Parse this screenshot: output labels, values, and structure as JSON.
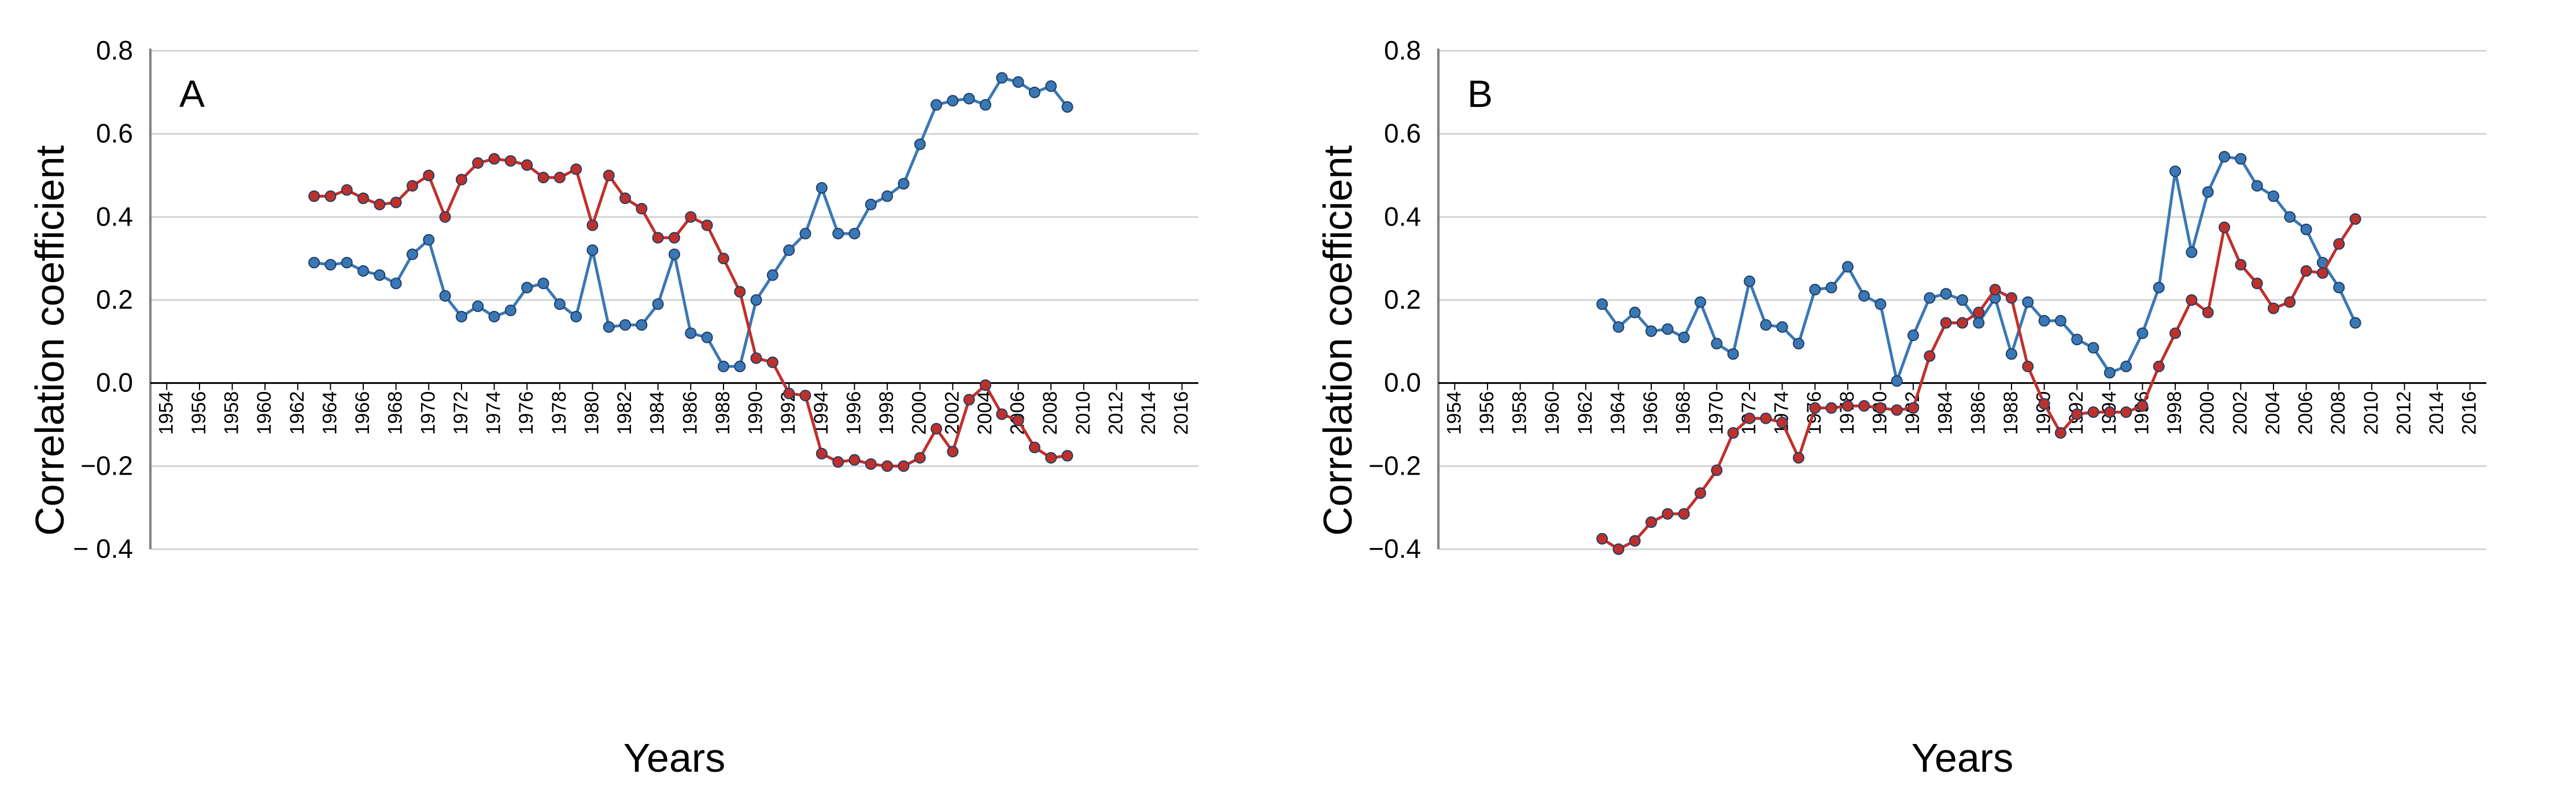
{
  "chart_data": [
    {
      "type": "line",
      "panel_label": "A",
      "xlabel": "Years",
      "ylabel": "Correlation coefficient",
      "ylim": [
        -0.4,
        0.8
      ],
      "xlim": [
        1953,
        2017
      ],
      "yticks": [
        -0.4,
        -0.2,
        0.0,
        0.2,
        0.4,
        0.6,
        0.8
      ],
      "ytick_labels": [
        "− 0.4",
        "−0.2",
        "0.0",
        "0.2",
        "0.4",
        "0.6",
        "0.8"
      ],
      "xticks": [
        "1954",
        "1956",
        "1958",
        "1960",
        "1962",
        "1964",
        "1966",
        "1968",
        "1970",
        "1972",
        "1974",
        "1976",
        "1978",
        "1980",
        "1982",
        "1984",
        "1986",
        "1988",
        "1990",
        "1992",
        "1994",
        "1996",
        "1998",
        "2000",
        "2002",
        "2004",
        "2006",
        "2008",
        "2010",
        "2012",
        "2014",
        "2016"
      ],
      "grid": true,
      "x": [
        1963,
        1964,
        1965,
        1966,
        1967,
        1968,
        1969,
        1970,
        1971,
        1972,
        1973,
        1974,
        1975,
        1976,
        1977,
        1978,
        1979,
        1980,
        1981,
        1982,
        1983,
        1984,
        1985,
        1986,
        1987,
        1988,
        1989,
        1990,
        1991,
        1992,
        1993,
        1994,
        1995,
        1996,
        1997,
        1998,
        1999,
        2000,
        2001,
        2002,
        2003,
        2004,
        2005,
        2006,
        2007,
        2008,
        2009
      ],
      "series": [
        {
          "name": "blue",
          "color": "#3a78b5",
          "values": [
            0.29,
            0.285,
            0.29,
            0.27,
            0.26,
            0.24,
            0.31,
            0.345,
            0.21,
            0.16,
            0.185,
            0.16,
            0.175,
            0.23,
            0.24,
            0.19,
            0.16,
            0.32,
            0.135,
            0.14,
            0.14,
            0.19,
            0.31,
            0.12,
            0.11,
            0.04,
            0.04,
            0.2,
            0.26,
            0.32,
            0.36,
            0.47,
            0.36,
            0.36,
            0.43,
            0.45,
            0.48,
            0.575,
            0.67,
            0.68,
            0.685,
            0.67,
            0.735,
            0.725,
            0.7,
            0.715,
            0.665
          ]
        },
        {
          "name": "red",
          "color": "#c0302b",
          "values": [
            0.45,
            0.45,
            0.465,
            0.445,
            0.43,
            0.435,
            0.475,
            0.5,
            0.4,
            0.49,
            0.53,
            0.54,
            0.535,
            0.525,
            0.495,
            0.495,
            0.515,
            0.38,
            0.5,
            0.445,
            0.42,
            0.35,
            0.35,
            0.4,
            0.38,
            0.3,
            0.22,
            0.06,
            0.05,
            -0.025,
            -0.03,
            -0.17,
            -0.19,
            -0.185,
            -0.195,
            -0.2,
            -0.2,
            -0.18,
            -0.11,
            -0.165,
            -0.04,
            -0.005,
            -0.075,
            -0.09,
            -0.155,
            -0.18,
            -0.175
          ]
        }
      ]
    },
    {
      "type": "line",
      "panel_label": "B",
      "xlabel": "Years",
      "ylabel": "Correlation coefficient",
      "ylim": [
        -0.4,
        0.8
      ],
      "xlim": [
        1953,
        2017
      ],
      "yticks": [
        -0.4,
        -0.2,
        0.0,
        0.2,
        0.4,
        0.6,
        0.8
      ],
      "ytick_labels": [
        "−0.4",
        "−0.2",
        "0.0",
        "0.2",
        "0.4",
        "0.6",
        "0.8"
      ],
      "xticks": [
        "1954",
        "1956",
        "1958",
        "1960",
        "1962",
        "1964",
        "1966",
        "1968",
        "1970",
        "1972",
        "1974",
        "1976",
        "1978",
        "1980",
        "1982",
        "1984",
        "1986",
        "1988",
        "1990",
        "1992",
        "1994",
        "1996",
        "1998",
        "2000",
        "2002",
        "2004",
        "2006",
        "2008",
        "2010",
        "2012",
        "2014",
        "2016"
      ],
      "grid": true,
      "x": [
        1963,
        1964,
        1965,
        1966,
        1967,
        1968,
        1969,
        1970,
        1971,
        1972,
        1973,
        1974,
        1975,
        1976,
        1977,
        1978,
        1979,
        1980,
        1981,
        1982,
        1983,
        1984,
        1985,
        1986,
        1987,
        1988,
        1989,
        1990,
        1991,
        1992,
        1993,
        1994,
        1995,
        1996,
        1997,
        1998,
        1999,
        2000,
        2001,
        2002,
        2003,
        2004,
        2005,
        2006,
        2007,
        2008,
        2009
      ],
      "series": [
        {
          "name": "blue",
          "color": "#3a78b5",
          "values": [
            0.19,
            0.135,
            0.17,
            0.125,
            0.13,
            0.11,
            0.195,
            0.095,
            0.07,
            0.245,
            0.14,
            0.135,
            0.095,
            0.225,
            0.23,
            0.28,
            0.21,
            0.19,
            0.005,
            0.115,
            0.205,
            0.215,
            0.2,
            0.145,
            0.205,
            0.07,
            0.195,
            0.15,
            0.15,
            0.105,
            0.085,
            0.025,
            0.04,
            0.12,
            0.23,
            0.51,
            0.315,
            0.46,
            0.545,
            0.54,
            0.475,
            0.45,
            0.4,
            0.37,
            0.29,
            0.23,
            0.145
          ]
        },
        {
          "name": "red",
          "color": "#c0302b",
          "values": [
            -0.375,
            -0.4,
            -0.38,
            -0.335,
            -0.315,
            -0.315,
            -0.265,
            -0.21,
            -0.12,
            -0.085,
            -0.085,
            -0.095,
            -0.18,
            -0.06,
            -0.06,
            -0.055,
            -0.055,
            -0.06,
            -0.065,
            -0.06,
            0.065,
            0.145,
            0.145,
            0.17,
            0.225,
            0.205,
            0.04,
            -0.05,
            -0.12,
            -0.075,
            -0.07,
            -0.07,
            -0.07,
            -0.055,
            0.04,
            0.12,
            0.2,
            0.17,
            0.375,
            0.285,
            0.24,
            0.18,
            0.195,
            0.27,
            0.265,
            0.335,
            0.395
          ]
        }
      ]
    }
  ]
}
